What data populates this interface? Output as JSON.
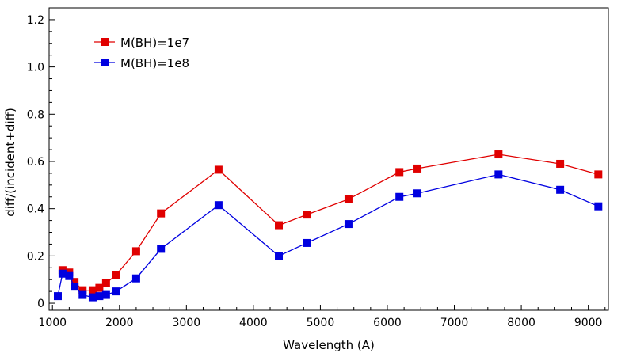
{
  "chart_data": {
    "type": "line",
    "title": "",
    "xlabel": "Wavelength (A)",
    "ylabel": "diff/(incident+diff)",
    "xlim": [
      950,
      9300
    ],
    "ylim": [
      -0.03,
      1.25
    ],
    "xticks": [
      1000,
      2000,
      3000,
      4000,
      5000,
      6000,
      7000,
      8000,
      9000
    ],
    "yticks": [
      0,
      0.2,
      0.4,
      0.6,
      0.8,
      1.0,
      1.2
    ],
    "ytick_labels": [
      "0",
      "0.2",
      "0.4",
      "0.6",
      "0.8",
      "1.0",
      "1.2"
    ],
    "grid": false,
    "legend_position": "top-left",
    "series": [
      {
        "name": "M(BH)=1e7",
        "color": "#e00000",
        "marker": "square",
        "points": [
          [
            1150,
            0.14
          ],
          [
            1250,
            0.13
          ],
          [
            1330,
            0.09
          ],
          [
            1450,
            0.055
          ],
          [
            1600,
            0.055
          ],
          [
            1700,
            0.065
          ],
          [
            1800,
            0.085
          ],
          [
            1950,
            0.12
          ],
          [
            2250,
            0.22
          ],
          [
            2620,
            0.38
          ],
          [
            3480,
            0.565
          ],
          [
            4380,
            0.33
          ],
          [
            4800,
            0.375
          ],
          [
            5420,
            0.44
          ],
          [
            6180,
            0.555
          ],
          [
            6450,
            0.57
          ],
          [
            7660,
            0.63
          ],
          [
            8580,
            0.59
          ],
          [
            9150,
            0.545
          ]
        ]
      },
      {
        "name": "M(BH)=1e8",
        "color": "#0000e0",
        "marker": "square",
        "points": [
          [
            1080,
            0.03
          ],
          [
            1150,
            0.125
          ],
          [
            1250,
            0.115
          ],
          [
            1330,
            0.07
          ],
          [
            1450,
            0.035
          ],
          [
            1600,
            0.025
          ],
          [
            1700,
            0.03
          ],
          [
            1800,
            0.035
          ],
          [
            1950,
            0.05
          ],
          [
            2250,
            0.105
          ],
          [
            2620,
            0.23
          ],
          [
            3480,
            0.415
          ],
          [
            4380,
            0.2
          ],
          [
            4800,
            0.255
          ],
          [
            5420,
            0.335
          ],
          [
            6180,
            0.45
          ],
          [
            6450,
            0.465
          ],
          [
            7660,
            0.545
          ],
          [
            8580,
            0.48
          ],
          [
            9150,
            0.41
          ]
        ]
      }
    ]
  }
}
